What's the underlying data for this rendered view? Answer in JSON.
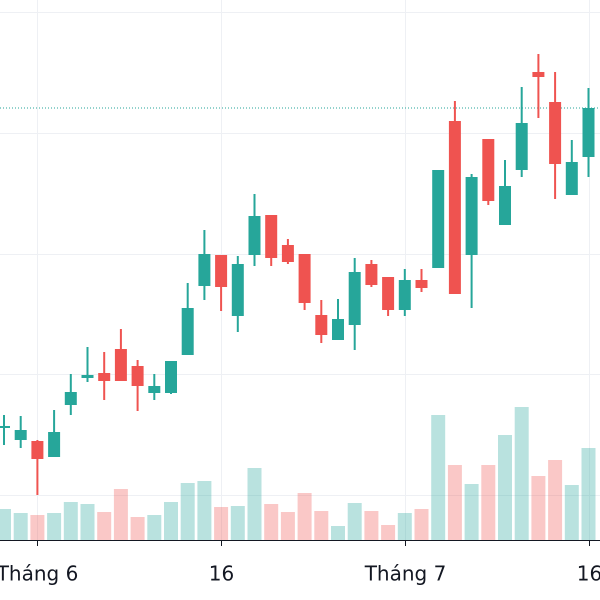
{
  "chart_data": {
    "type": "candlestick",
    "categories": [
      null,
      null,
      "Tháng 6",
      null,
      null,
      null,
      null,
      null,
      null,
      null,
      null,
      null,
      null,
      "16",
      null,
      null,
      null,
      null,
      null,
      null,
      null,
      null,
      null,
      null,
      "Tháng 7",
      null,
      null,
      null,
      null,
      null,
      null,
      null,
      null,
      null,
      null,
      "16"
    ],
    "open": [
      11.2,
      10,
      9.9,
      8.3,
      13.5,
      16.2,
      16.7,
      19.1,
      17.4,
      14.7,
      14.7,
      18.5,
      25.4,
      28.5,
      22.4,
      28.5,
      32.5,
      29.5,
      28.6,
      22.5,
      20,
      21.5,
      27.6,
      26.3,
      23,
      26,
      27.2,
      41.9,
      28.5,
      40.1,
      31.5,
      37,
      46.8,
      43.8,
      34.5,
      38.3
    ],
    "high": [
      12.5,
      12.4,
      10,
      13,
      16.6,
      19.3,
      18.8,
      21.1,
      18,
      16.6,
      17.9,
      25.7,
      31,
      28.5,
      28.4,
      34.6,
      32.5,
      30.1,
      28.6,
      24,
      24.1,
      28.2,
      28,
      26.3,
      27.1,
      27.1,
      37,
      43.9,
      36.6,
      40.1,
      38,
      45.3,
      48.6,
      46.8,
      40,
      45.2
    ],
    "low": [
      9.5,
      9.2,
      4.5,
      8.3,
      12.5,
      15.8,
      14,
      15.9,
      12.9,
      14,
      14.6,
      18.5,
      24,
      22.9,
      20.8,
      27.4,
      27.4,
      27.6,
      23,
      19.7,
      20,
      19,
      25.3,
      22.4,
      22.4,
      24.8,
      27.2,
      24.6,
      23.2,
      33.5,
      31.5,
      36.3,
      42.2,
      34.1,
      34.5,
      36.3
    ],
    "close": [
      11.4,
      11,
      8.1,
      10.8,
      14.8,
      16.5,
      15.9,
      15.9,
      15.4,
      15.4,
      17.9,
      23.2,
      28.6,
      25.3,
      27.6,
      32.4,
      28.2,
      27.8,
      23.7,
      20.5,
      22.1,
      26.8,
      25.5,
      23,
      26,
      25.2,
      37,
      24.6,
      36.3,
      33.9,
      35.4,
      41.7,
      46.3,
      37.6,
      37.8,
      43.2
    ],
    "volume": [
      31,
      27,
      25,
      27,
      38,
      36,
      28,
      51,
      23,
      25,
      38,
      57,
      59,
      33,
      34,
      72,
      36,
      28,
      47,
      29,
      14,
      37,
      29,
      15,
      27,
      31,
      125,
      75,
      56,
      75,
      105,
      133,
      64,
      80,
      55,
      92
    ],
    "up_color": "#26a69a",
    "down_color": "#ef5350",
    "ylim": [
      0,
      54
    ],
    "yticks": [
      4.5,
      16.6,
      28.6,
      40.7,
      52.8
    ],
    "vlim": [
      0,
      540
    ],
    "grid": true,
    "last_price_line": true
  }
}
